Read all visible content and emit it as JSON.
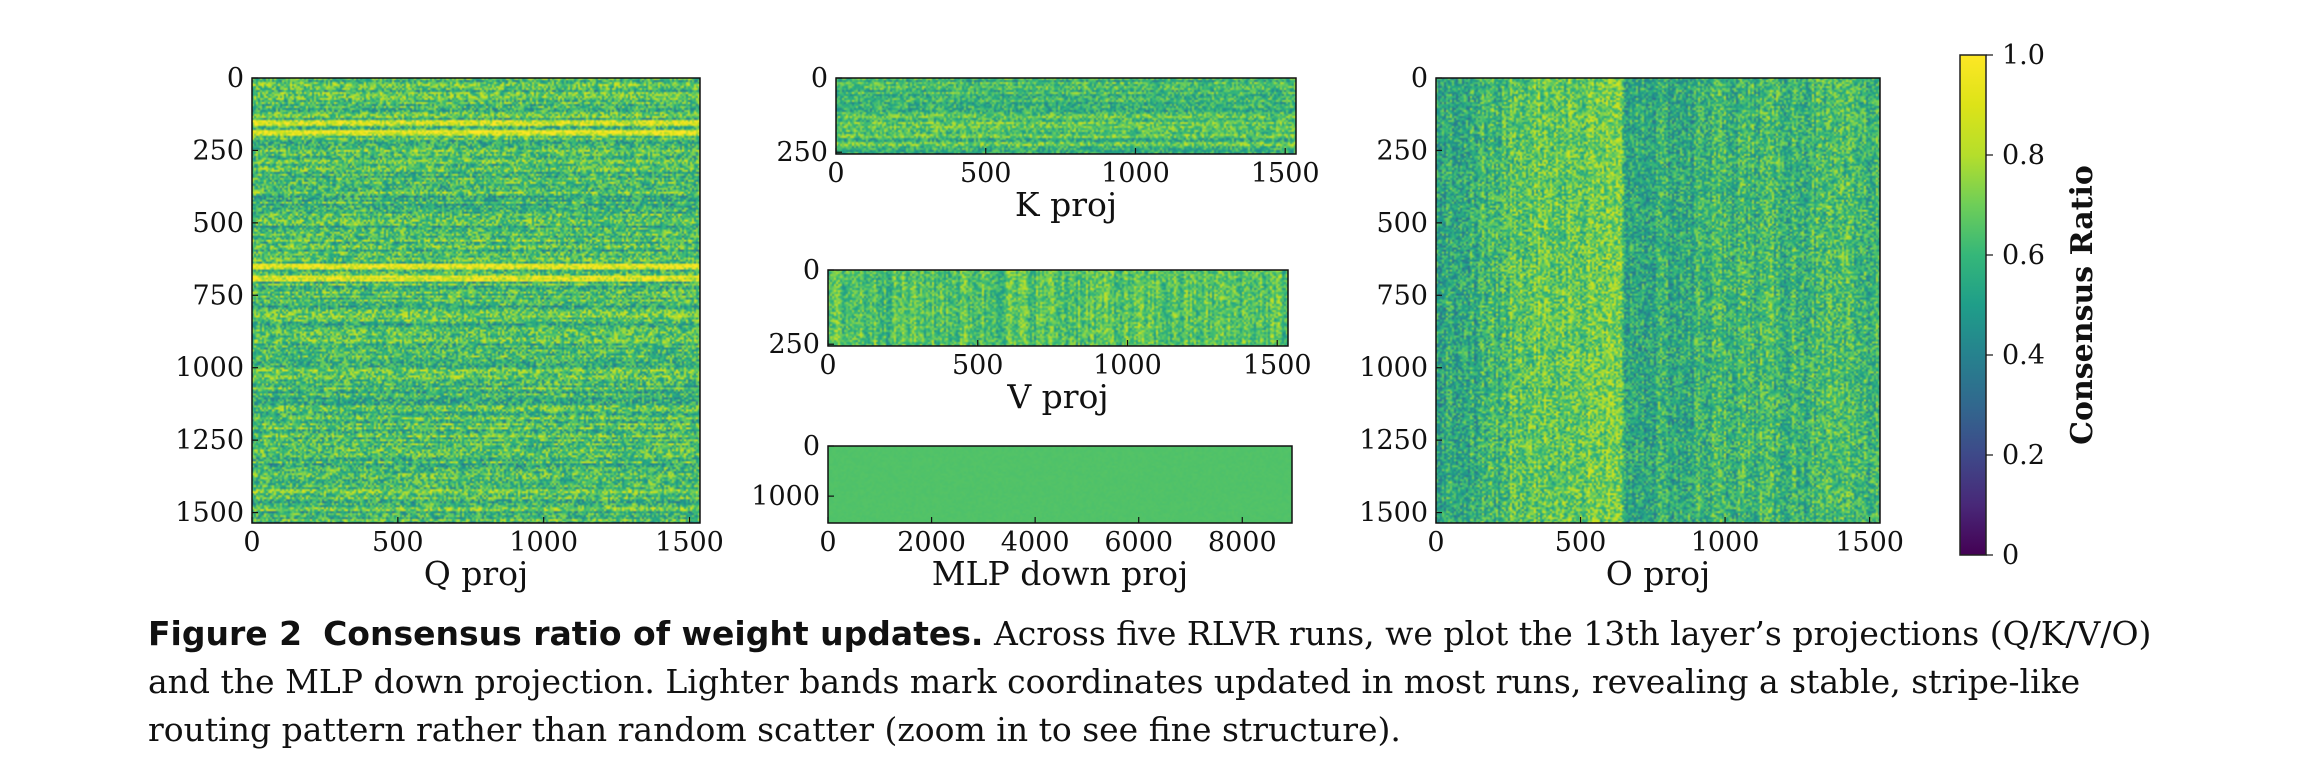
{
  "chart_data": [
    {
      "type": "heatmap",
      "title": "Q proj",
      "x_ticks": [
        "0",
        "500",
        "1000",
        "1500"
      ],
      "x_tick_values": [
        0,
        500,
        1000,
        1500
      ],
      "xlim": [
        0,
        1536
      ],
      "y_ticks": [
        "0",
        "250",
        "500",
        "750",
        "1000",
        "1250",
        "1500"
      ],
      "y_tick_values": [
        0,
        250,
        500,
        750,
        1000,
        1250,
        1500
      ],
      "ylim": [
        0,
        1536
      ],
      "pattern": "horizontal-bands",
      "bright_bands": [
        150,
        185,
        650,
        690
      ],
      "value_range": [
        0.35,
        0.9
      ]
    },
    {
      "type": "heatmap",
      "title": "K proj",
      "x_ticks": [
        "0",
        "500",
        "1000",
        "1500"
      ],
      "x_tick_values": [
        0,
        500,
        1000,
        1500
      ],
      "xlim": [
        0,
        1536
      ],
      "y_ticks": [
        "0",
        "250"
      ],
      "y_tick_values": [
        0,
        250
      ],
      "ylim": [
        0,
        256
      ],
      "pattern": "horizontal-bands",
      "value_range": [
        0.4,
        0.85
      ]
    },
    {
      "type": "heatmap",
      "title": "V proj",
      "x_ticks": [
        "0",
        "500",
        "1000",
        "1500"
      ],
      "x_tick_values": [
        0,
        500,
        1000,
        1500
      ],
      "xlim": [
        0,
        1536
      ],
      "y_ticks": [
        "0",
        "250"
      ],
      "y_tick_values": [
        0,
        250
      ],
      "ylim": [
        0,
        256
      ],
      "pattern": "vertical-streaks",
      "value_range": [
        0.45,
        0.85
      ]
    },
    {
      "type": "heatmap",
      "title": "MLP down proj",
      "x_ticks": [
        "0",
        "2000",
        "4000",
        "6000",
        "8000"
      ],
      "x_tick_values": [
        0,
        2000,
        4000,
        6000,
        8000
      ],
      "xlim": [
        0,
        8960
      ],
      "y_ticks": [
        "0",
        "1000"
      ],
      "y_tick_values": [
        0,
        1000
      ],
      "ylim": [
        0,
        1536
      ],
      "pattern": "uniform",
      "value_range": [
        0.6,
        0.7
      ]
    },
    {
      "type": "heatmap",
      "title": "O proj",
      "x_ticks": [
        "0",
        "500",
        "1000",
        "1500"
      ],
      "x_tick_values": [
        0,
        500,
        1000,
        1500
      ],
      "xlim": [
        0,
        1536
      ],
      "y_ticks": [
        "0",
        "250",
        "500",
        "750",
        "1000",
        "1250",
        "1500"
      ],
      "y_tick_values": [
        0,
        250,
        500,
        750,
        1000,
        1250,
        1500
      ],
      "ylim": [
        0,
        1536
      ],
      "pattern": "vertical-bands",
      "bright_column_range": [
        250,
        640
      ],
      "value_range": [
        0.35,
        0.85
      ]
    }
  ],
  "colorbar": {
    "label": "Consensus Ratio",
    "colormap": "viridis",
    "range": [
      0,
      1
    ],
    "ticks": [
      "0",
      "0.2",
      "0.4",
      "0.6",
      "0.8",
      "1.0"
    ],
    "tick_values": [
      0,
      0.2,
      0.4,
      0.6,
      0.8,
      1.0
    ]
  },
  "caption": {
    "label": "Figure 2",
    "title": "Consensus ratio of weight updates.",
    "text": "Across five RLVR runs, we plot the 13th layer’s projections (Q/K/V/O) and the MLP down projection. Lighter bands mark coordinates updated in most runs, revealing a stable, stripe-like routing pattern rather than random scatter (zoom in to see fine structure)."
  }
}
